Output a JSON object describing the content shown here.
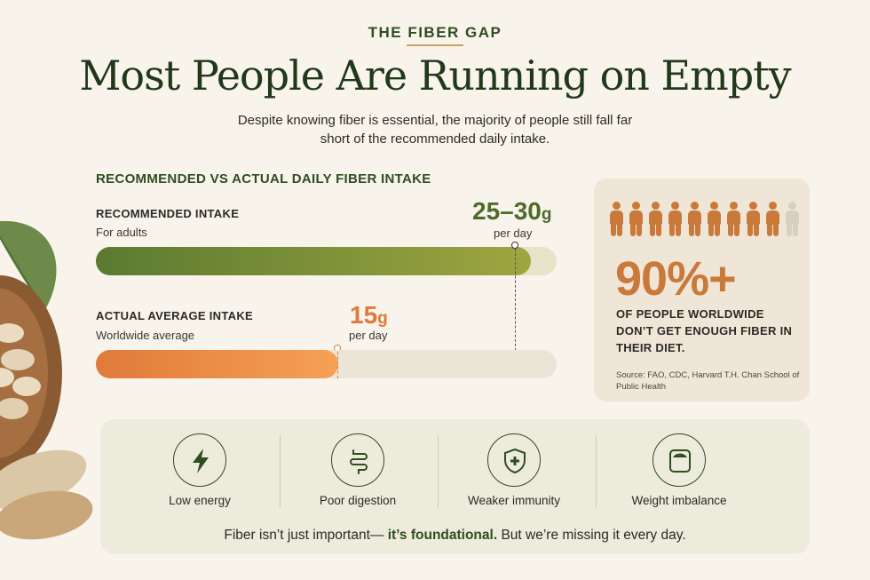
{
  "header": {
    "eyebrow": "THE FIBER GAP",
    "title": "Most People Are Running on Empty",
    "subtitle": "Despite knowing fiber is essential, the majority of people still fall far short of the recommended daily intake."
  },
  "intake": {
    "section_title": "RECOMMENDED VS ACTUAL DAILY FIBER INTAKE",
    "recommended": {
      "label": "RECOMMENDED INTAKE",
      "sublabel": "For adults",
      "value": "25–30",
      "unit": "g",
      "per": "per day"
    },
    "actual": {
      "label": "ACTUAL AVERAGE INTAKE",
      "sublabel": "Worldwide average",
      "value": "15",
      "unit": "g",
      "per": "per day"
    }
  },
  "stat": {
    "people_total": 10,
    "people_highlighted": 9,
    "value": "90%+",
    "text": "OF PEOPLE WORLDWIDE DON’T GET ENOUGH FIBER IN THEIR DIET.",
    "source": "Source: FAO, CDC, Harvard T.H. Chan School of Public Health"
  },
  "effects": [
    {
      "label": "Low energy",
      "icon": "lightning-bolt-icon"
    },
    {
      "label": "Poor digestion",
      "icon": "intestine-icon"
    },
    {
      "label": "Weaker immunity",
      "icon": "shield-plus-icon"
    },
    {
      "label": "Weight imbalance",
      "icon": "scale-icon"
    }
  ],
  "tagline": {
    "before": "Fiber isn’t just important— ",
    "emphasis": "it’s foundational.",
    "after": " But we’re missing it every day."
  },
  "colors": {
    "green": "#2f4d1f",
    "orange": "#c97a3a"
  }
}
